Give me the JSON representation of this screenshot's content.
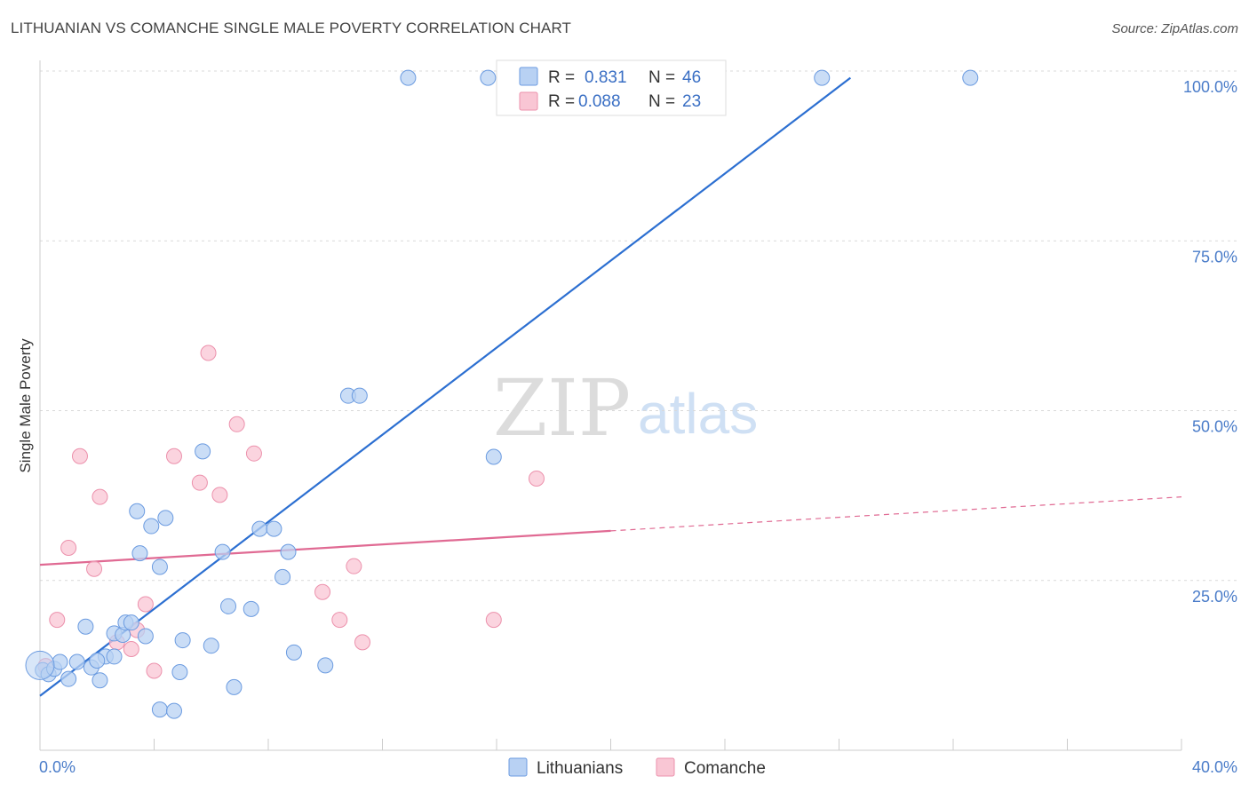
{
  "header": {
    "title": "LITHUANIAN VS COMANCHE SINGLE MALE POVERTY CORRELATION CHART",
    "source": "Source: ZipAtlas.com"
  },
  "watermark": {
    "zip": "ZIP",
    "atlas": "atlas"
  },
  "colors": {
    "lithuanians_fill": "#b8d1f3",
    "lithuanians_stroke": "#6b9be0",
    "lithuanians_line": "#2c6fd1",
    "comanche_fill": "#f9c6d4",
    "comanche_stroke": "#ec91ac",
    "comanche_line": "#e06a93",
    "axis_label": "#4a7cc9"
  },
  "legend": {
    "rows": [
      {
        "r_label": "R =",
        "r_value": "0.831",
        "n_label": "N =",
        "n_value": "46"
      },
      {
        "r_label": "R =",
        "r_value": "0.088",
        "n_label": "N =",
        "n_value": "23"
      }
    ]
  },
  "chart_data": {
    "type": "scatter",
    "title": "LITHUANIAN VS COMANCHE SINGLE MALE POVERTY CORRELATION CHART",
    "xlabel": "",
    "ylabel": "Single Male Poverty",
    "xlim": [
      0,
      40
    ],
    "ylim": [
      0,
      100
    ],
    "x_tick_labels": [
      "0.0%",
      "40.0%"
    ],
    "y_tick_labels": [
      "100.0%",
      "75.0%",
      "50.0%",
      "25.0%"
    ],
    "y_ticks": [
      100,
      75,
      50,
      25
    ],
    "grid": true,
    "legend_position": "top-center",
    "series": [
      {
        "name": "Lithuanians",
        "points": [
          [
            0.1,
            11.8
          ],
          [
            0.3,
            11.2
          ],
          [
            0.5,
            12.0
          ],
          [
            0.7,
            13.0
          ],
          [
            1.0,
            10.5
          ],
          [
            1.3,
            13.0
          ],
          [
            1.6,
            18.2
          ],
          [
            1.8,
            12.2
          ],
          [
            2.1,
            10.3
          ],
          [
            2.3,
            13.8
          ],
          [
            2.0,
            13.2
          ],
          [
            2.6,
            13.8
          ],
          [
            2.6,
            17.2
          ],
          [
            2.9,
            17.0
          ],
          [
            3.0,
            18.8
          ],
          [
            3.2,
            18.8
          ],
          [
            3.7,
            16.8
          ],
          [
            3.4,
            35.2
          ],
          [
            3.5,
            29.0
          ],
          [
            3.9,
            33.0
          ],
          [
            4.2,
            27.0
          ],
          [
            4.4,
            34.2
          ],
          [
            4.2,
            6.0
          ],
          [
            4.7,
            5.8
          ],
          [
            4.9,
            11.5
          ],
          [
            5.0,
            16.2
          ],
          [
            5.7,
            44.0
          ],
          [
            6.0,
            15.4
          ],
          [
            6.4,
            29.2
          ],
          [
            6.6,
            21.2
          ],
          [
            6.8,
            9.3
          ],
          [
            7.4,
            20.8
          ],
          [
            7.7,
            32.6
          ],
          [
            8.2,
            32.6
          ],
          [
            8.5,
            25.5
          ],
          [
            8.7,
            29.2
          ],
          [
            8.9,
            14.4
          ],
          [
            10.0,
            12.5
          ],
          [
            10.8,
            52.2
          ],
          [
            11.2,
            52.2
          ],
          [
            12.9,
            99.0
          ],
          [
            15.9,
            43.2
          ],
          [
            15.7,
            99.0
          ],
          [
            27.4,
            99.0
          ],
          [
            32.6,
            99.0
          ],
          [
            0.0,
            12.5
          ]
        ],
        "trend": {
          "x0": 0.0,
          "y0": 8.0,
          "x1": 28.4,
          "y1": 99.0
        }
      },
      {
        "name": "Comanche",
        "points": [
          [
            0.6,
            19.2
          ],
          [
            1.0,
            29.8
          ],
          [
            1.4,
            43.3
          ],
          [
            1.9,
            26.7
          ],
          [
            2.1,
            37.3
          ],
          [
            2.7,
            15.9
          ],
          [
            3.2,
            14.9
          ],
          [
            3.4,
            17.7
          ],
          [
            3.7,
            21.5
          ],
          [
            4.0,
            11.7
          ],
          [
            4.7,
            43.3
          ],
          [
            5.6,
            39.4
          ],
          [
            5.9,
            58.5
          ],
          [
            6.3,
            37.6
          ],
          [
            6.9,
            48.0
          ],
          [
            7.5,
            43.7
          ],
          [
            9.9,
            23.3
          ],
          [
            10.5,
            19.2
          ],
          [
            11.0,
            27.1
          ],
          [
            11.3,
            15.9
          ],
          [
            15.9,
            19.2
          ],
          [
            17.4,
            40.0
          ],
          [
            0.2,
            12.4
          ]
        ],
        "trend_solid": {
          "x0": 0.0,
          "y0": 27.3,
          "x1": 20.0,
          "y1": 32.3
        },
        "trend_dashed": {
          "x0": 20.0,
          "y0": 32.3,
          "x1": 40.0,
          "y1": 37.3
        }
      }
    ]
  }
}
